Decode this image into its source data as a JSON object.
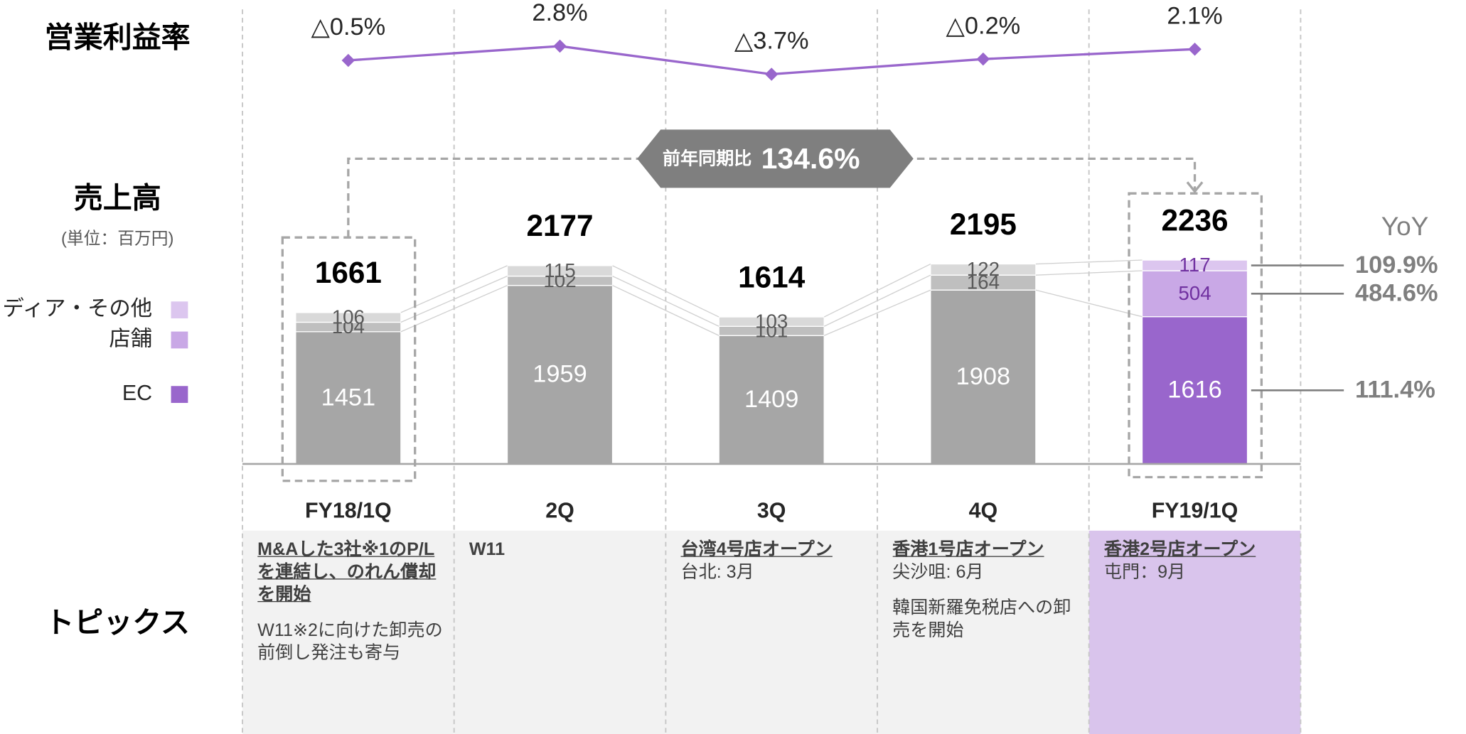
{
  "chart_data": [
    {
      "type": "line",
      "title": "営業利益率",
      "values": [
        -0.5,
        2.8,
        -3.7,
        -0.2,
        2.1
      ],
      "value_labels": [
        "△0.5%",
        "2.8%",
        "△3.7%",
        "△0.2%",
        "2.1%"
      ],
      "color": "#9966cc"
    },
    {
      "type": "stacked_bar",
      "title": "売上高",
      "subtitle": "(単位：百万円)",
      "categories": [
        "FY18/1Q",
        "2Q",
        "3Q",
        "4Q",
        "FY19/1Q"
      ],
      "series": [
        {
          "name": "EC",
          "color": "#9966cc",
          "past_color": "#a6a6a6",
          "values": [
            1451,
            1959,
            1409,
            1908,
            1616
          ]
        },
        {
          "name": "店舗",
          "color": "#c9a8e6",
          "past_color": "#bfbfbf",
          "values": [
            104,
            102,
            101,
            164,
            504
          ]
        },
        {
          "name": "メディア・その他",
          "color": "#dcc6ef",
          "past_color": "#d9d9d9",
          "values": [
            106,
            115,
            103,
            122,
            117
          ]
        }
      ],
      "totals": [
        1661,
        2177,
        1614,
        2195,
        2236
      ],
      "yoy_title": "YoY",
      "yoy": {
        "values": [
          111.4,
          484.6,
          109.9
        ],
        "value_labels": [
          "111.4%",
          "484.6%",
          "109.9%"
        ]
      },
      "comparison": {
        "label": "前年同期比",
        "value": 134.6,
        "value_label": "134.6%"
      }
    }
  ],
  "topics": {
    "title": "トピックス",
    "items": [
      {
        "heading": "M&Aした3社※1のP/Lを連結し、のれん償却を開始",
        "underline": true,
        "body": [
          "W11※2に向けた卸売の前倒し発注も寄与"
        ]
      },
      {
        "heading": "W11",
        "underline": false,
        "body": []
      },
      {
        "heading": "台湾4号店オープン",
        "underline": true,
        "body": [
          "台北: 3月"
        ]
      },
      {
        "heading": "香港1号店オープン",
        "underline": true,
        "body": [
          "尖沙咀: 6月",
          "韓国新羅免税店への卸売を開始"
        ]
      },
      {
        "heading": "香港2号店オープン",
        "underline": true,
        "body": [
          "屯門：9月"
        ]
      }
    ]
  }
}
